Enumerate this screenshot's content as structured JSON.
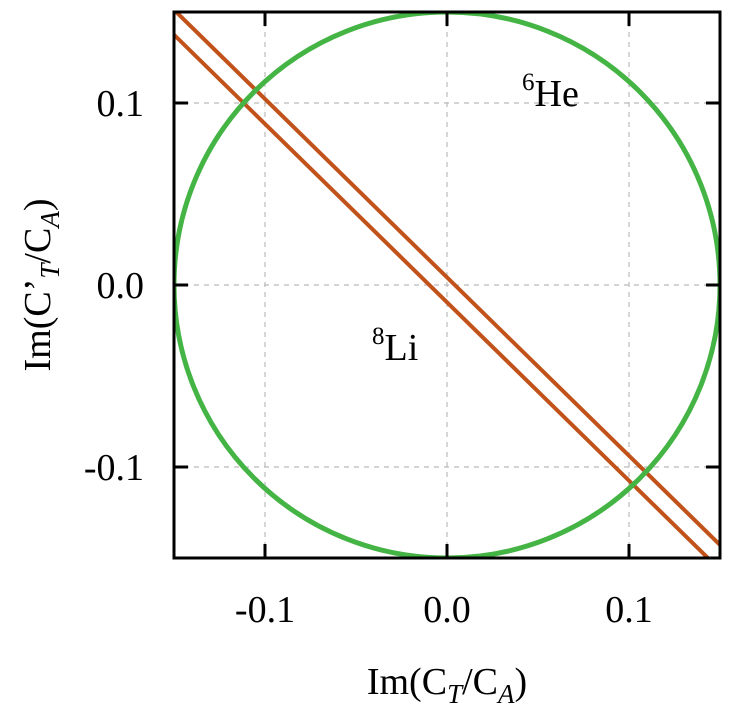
{
  "chart_data": {
    "type": "line",
    "title": "",
    "xlabel_parts": {
      "lead": "Im(C",
      "sub1": "T",
      "mid": "/C",
      "sub2": "A",
      "tail": ")"
    },
    "ylabel_parts": {
      "lead": "Im(C’",
      "sub1": "T",
      "mid": "/C",
      "sub2": "A",
      "tail": ")"
    },
    "xlim": [
      -0.15,
      0.15
    ],
    "ylim": [
      -0.15,
      0.15
    ],
    "xticks": [
      -0.1,
      0.0,
      0.1
    ],
    "yticks": [
      -0.1,
      0.0,
      0.1
    ],
    "xtick_labels": [
      "-0.1",
      "0.0",
      "0.1"
    ],
    "ytick_labels": [
      "-0.1",
      "0.0",
      "0.1"
    ],
    "grid": true,
    "series": [
      {
        "name": "6He",
        "shape": "circle",
        "center": [
          0,
          0
        ],
        "radius": 0.15,
        "color": "#44b444"
      },
      {
        "name": "8Li",
        "shape": "band",
        "lines": [
          {
            "x": [
              -0.15,
              0.15
            ],
            "y": [
              0.1512,
              -0.1428
            ]
          },
          {
            "x": [
              -0.15,
              0.15
            ],
            "y": [
              0.1375,
              -0.1565
            ]
          }
        ],
        "color": "#c0521a"
      }
    ],
    "annotations": [
      {
        "id": "he6",
        "sup": "6",
        "text": "He",
        "at": [
          0.048,
          0.104
        ]
      },
      {
        "id": "li8",
        "sup": "8",
        "text": "Li",
        "at": [
          -0.045,
          -0.041
        ]
      }
    ]
  }
}
